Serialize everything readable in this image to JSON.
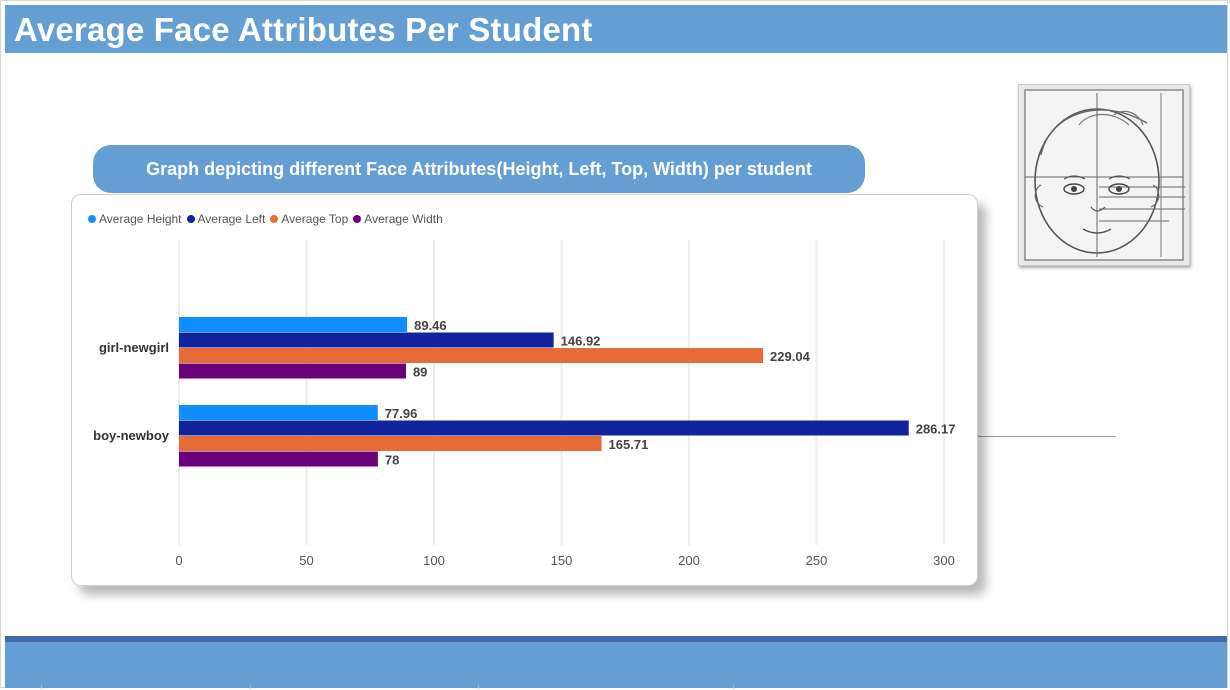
{
  "header": {
    "title": "Average Face Attributes Per Student"
  },
  "chart_title": "Graph depicting different Face Attributes(Height, Left, Top, Width) per student",
  "colors": {
    "title_bar": "#649ed3",
    "footer_line": "#4569ae",
    "grid": "#eeeeee"
  },
  "image": {
    "icon": "face-sketch-icon"
  },
  "chart_data": {
    "type": "bar",
    "orientation": "horizontal",
    "categories": [
      "girl-newgirl",
      "boy-newboy"
    ],
    "series": [
      {
        "name": "Average Height",
        "color": "#118dff",
        "values": [
          89.46,
          77.96
        ],
        "labels": [
          "89.46",
          "77.96"
        ]
      },
      {
        "name": "Average Left",
        "color": "#12239e",
        "values": [
          146.92,
          286.17
        ],
        "labels": [
          "146.92",
          "286.17"
        ]
      },
      {
        "name": "Average Top",
        "color": "#e66c37",
        "values": [
          229.04,
          165.71
        ],
        "labels": [
          "229.04",
          "165.71"
        ]
      },
      {
        "name": "Average Width",
        "color": "#6b007b",
        "values": [
          89,
          78
        ],
        "labels": [
          "89",
          "78"
        ]
      }
    ],
    "x_ticks": [
      "0",
      "50",
      "100",
      "150",
      "200",
      "250",
      "300"
    ],
    "xlim": [
      0,
      300
    ],
    "grid": true,
    "legend": "top-left"
  }
}
